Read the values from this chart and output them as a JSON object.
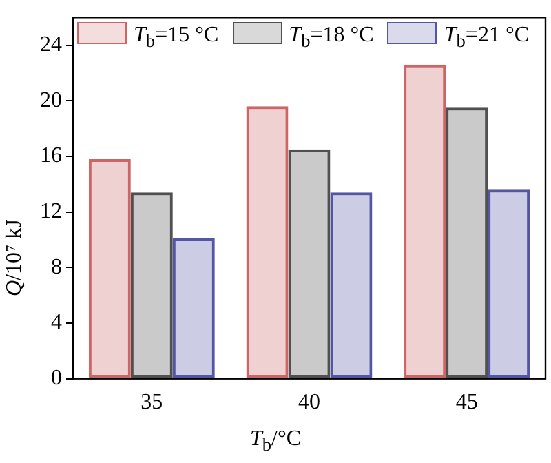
{
  "chart_data": {
    "type": "bar",
    "xlabel": "T$_{b}$/°C",
    "ylabel": "Q/10⁷ kJ",
    "categories": [
      "35",
      "40",
      "45"
    ],
    "series": [
      {
        "name": "T$_{b}$=15 °C",
        "color": "#cc6666",
        "values": [
          15.8,
          19.6,
          22.6
        ]
      },
      {
        "name": "T$_{b}$=18 °C",
        "color": "#505050",
        "values": [
          13.4,
          16.5,
          19.5
        ]
      },
      {
        "name": "T$_{b}$=21 °C",
        "color": "#5555a5",
        "values": [
          10.1,
          13.4,
          13.6
        ]
      }
    ],
    "ylim": [
      0,
      26
    ],
    "yticks": [
      0,
      4,
      8,
      12,
      16,
      20,
      24
    ],
    "grid": false,
    "legend": "top"
  }
}
